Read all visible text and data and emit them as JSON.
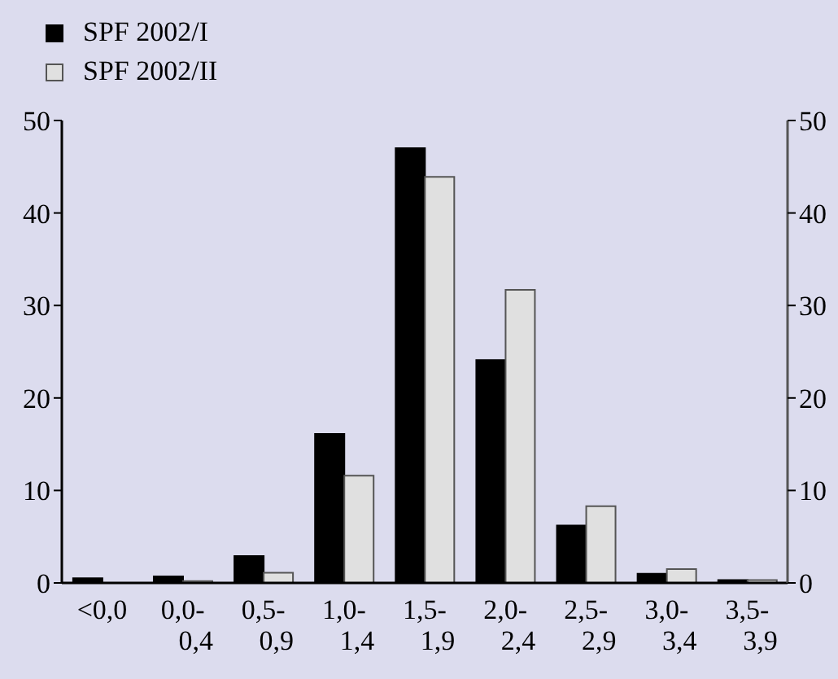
{
  "chart_data": {
    "type": "bar",
    "categories": [
      "<0,0",
      "0,0-0,4",
      "0,5-0,9",
      "1,0-1,4",
      "1,5-1,9",
      "2,0-2,4",
      "2,5-2,9",
      "3,0-3,4",
      "3,5-3,9"
    ],
    "series": [
      {
        "name": "SPF 2002/I",
        "color": "#000000",
        "values": [
          0.5,
          0.7,
          2.9,
          16.1,
          47,
          24.1,
          6.2,
          1.0,
          0.3
        ]
      },
      {
        "name": "SPF 2002/II",
        "color": "#e0e0e0",
        "values": [
          0,
          0.2,
          1.1,
          11.6,
          43.9,
          31.7,
          8.3,
          1.5,
          0.3
        ]
      }
    ],
    "ylim": [
      0,
      50
    ],
    "yticks": [
      0,
      10,
      20,
      30,
      40,
      50
    ],
    "y2lim": [
      0,
      50
    ],
    "y2ticks": [
      0,
      10,
      20,
      30,
      40,
      50
    ],
    "grid": false,
    "legend": "top left"
  }
}
